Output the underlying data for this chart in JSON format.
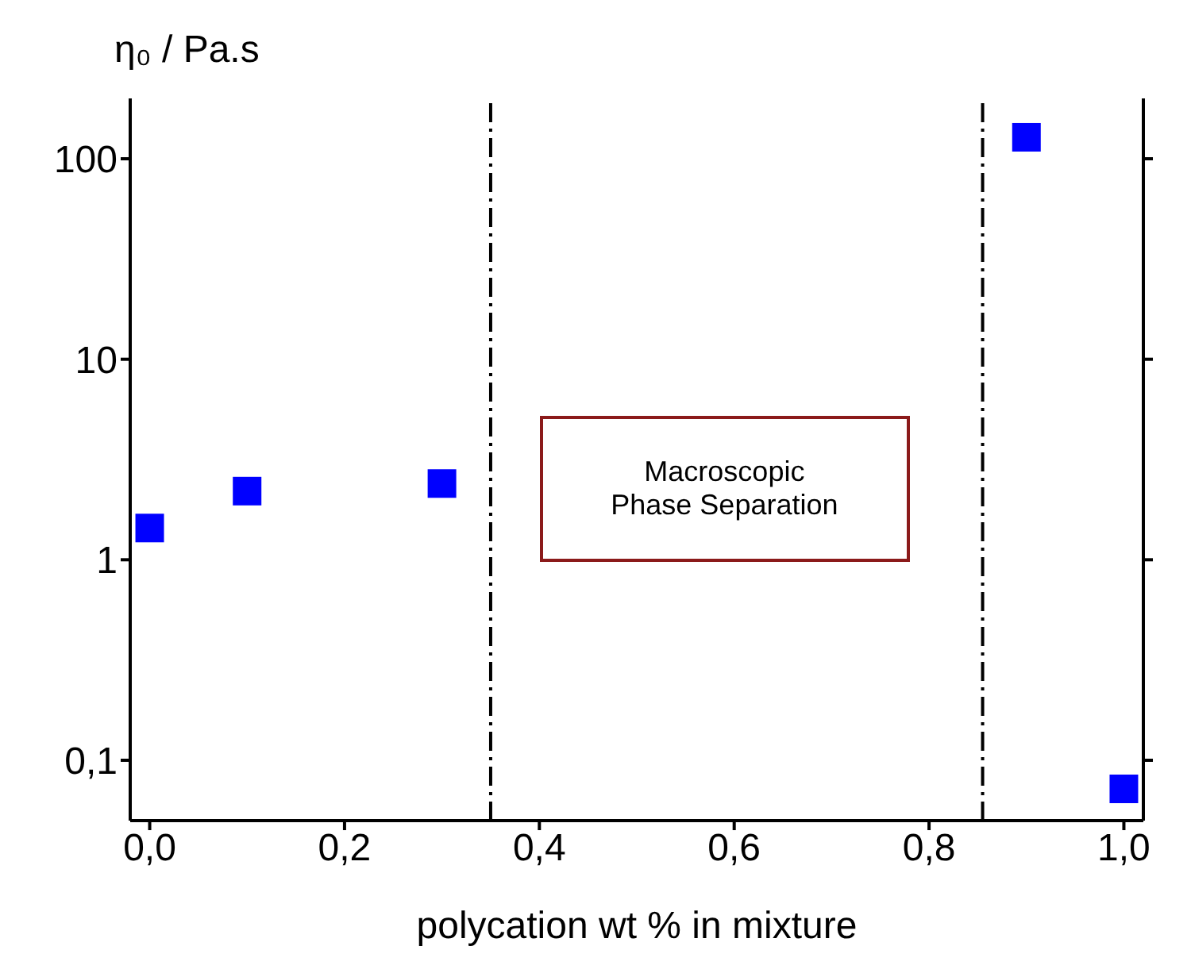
{
  "chart_data": {
    "type": "scatter",
    "xlabel": "polycation wt % in mixture",
    "ylabel": "η₀ / Pa.s",
    "annotations": [
      "Macroscopic\nPhase Separation"
    ],
    "x": [
      0,
      0.1,
      0.3,
      0.9,
      1.0
    ],
    "series": [
      {
        "color": "#0000ff",
        "values": [
          1.44,
          2.2,
          2.4,
          128,
          0.072
        ]
      }
    ],
    "marker": "square",
    "log": "y",
    "xlim": [
      -0.02,
      1.02
    ],
    "xticks": [
      {
        "value": 0,
        "label": "0,0"
      },
      {
        "value": 0.2,
        "label": "0,2"
      },
      {
        "value": 0.4,
        "label": "0,4"
      },
      {
        "value": 0.6,
        "label": "0,6"
      },
      {
        "value": 0.8,
        "label": "0,8"
      },
      {
        "value": 1,
        "label": "1,0"
      }
    ],
    "ylim": [
      0.05,
      200
    ],
    "yticks": [
      {
        "value": 0.1,
        "label": "0,1"
      },
      1,
      10,
      100
    ],
    "ref_lines": [
      {
        "axis": "x",
        "value": 0.35,
        "color": "#000000",
        "line_style": "dashed"
      },
      {
        "axis": "x",
        "value": 0.855,
        "color": "#000000",
        "line_style": "dashed"
      }
    ]
  }
}
